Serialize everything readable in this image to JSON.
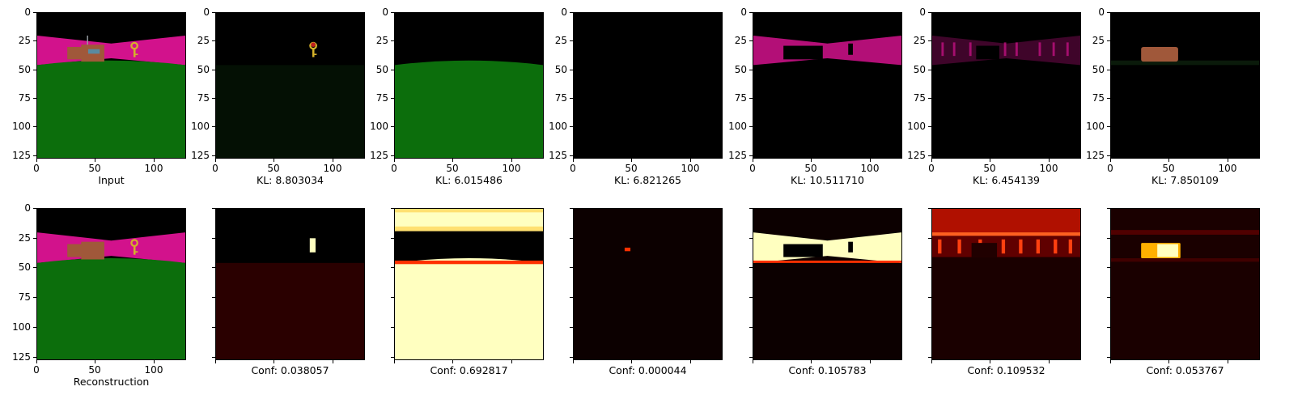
{
  "chart_data": {
    "type": "image-grid",
    "axis": {
      "x_ticks": [
        "0",
        "50",
        "100"
      ],
      "y_ticks": [
        "0",
        "25",
        "50",
        "75",
        "100",
        "125"
      ],
      "xlim": [
        0,
        128
      ],
      "ylim": [
        128,
        0
      ]
    },
    "top_row": [
      {
        "caption": "Input",
        "image": "input"
      },
      {
        "caption": "KL: 8.803034",
        "image": "key-only"
      },
      {
        "caption": "KL: 6.015486",
        "image": "floor-only"
      },
      {
        "caption": "KL: 6.821265",
        "image": "empty"
      },
      {
        "caption": "KL: 10.511710",
        "image": "walls-only"
      },
      {
        "caption": "KL: 6.454139",
        "image": "wall-edges"
      },
      {
        "caption": "KL: 7.850109",
        "image": "box-only"
      }
    ],
    "bottom_row": [
      {
        "caption": "Reconstruction",
        "image": "reconstruction"
      },
      {
        "caption": "Conf: 0.038057",
        "image": "mask-key"
      },
      {
        "caption": "Conf: 0.692817",
        "image": "mask-floor"
      },
      {
        "caption": "Conf: 0.000044",
        "image": "mask-dot"
      },
      {
        "caption": "Conf: 0.105783",
        "image": "mask-walls"
      },
      {
        "caption": "Conf: 0.109532",
        "image": "mask-edges"
      },
      {
        "caption": "Conf: 0.053767",
        "image": "mask-box"
      }
    ],
    "colors": {
      "wall": "#d2128c",
      "floor": "#0c6e0c",
      "box": "#a0583a",
      "key": "#d4b12a",
      "heat_hot": "#ffffc0",
      "heat_mid": "#ff3000",
      "heat_low": "#3a0000"
    }
  }
}
